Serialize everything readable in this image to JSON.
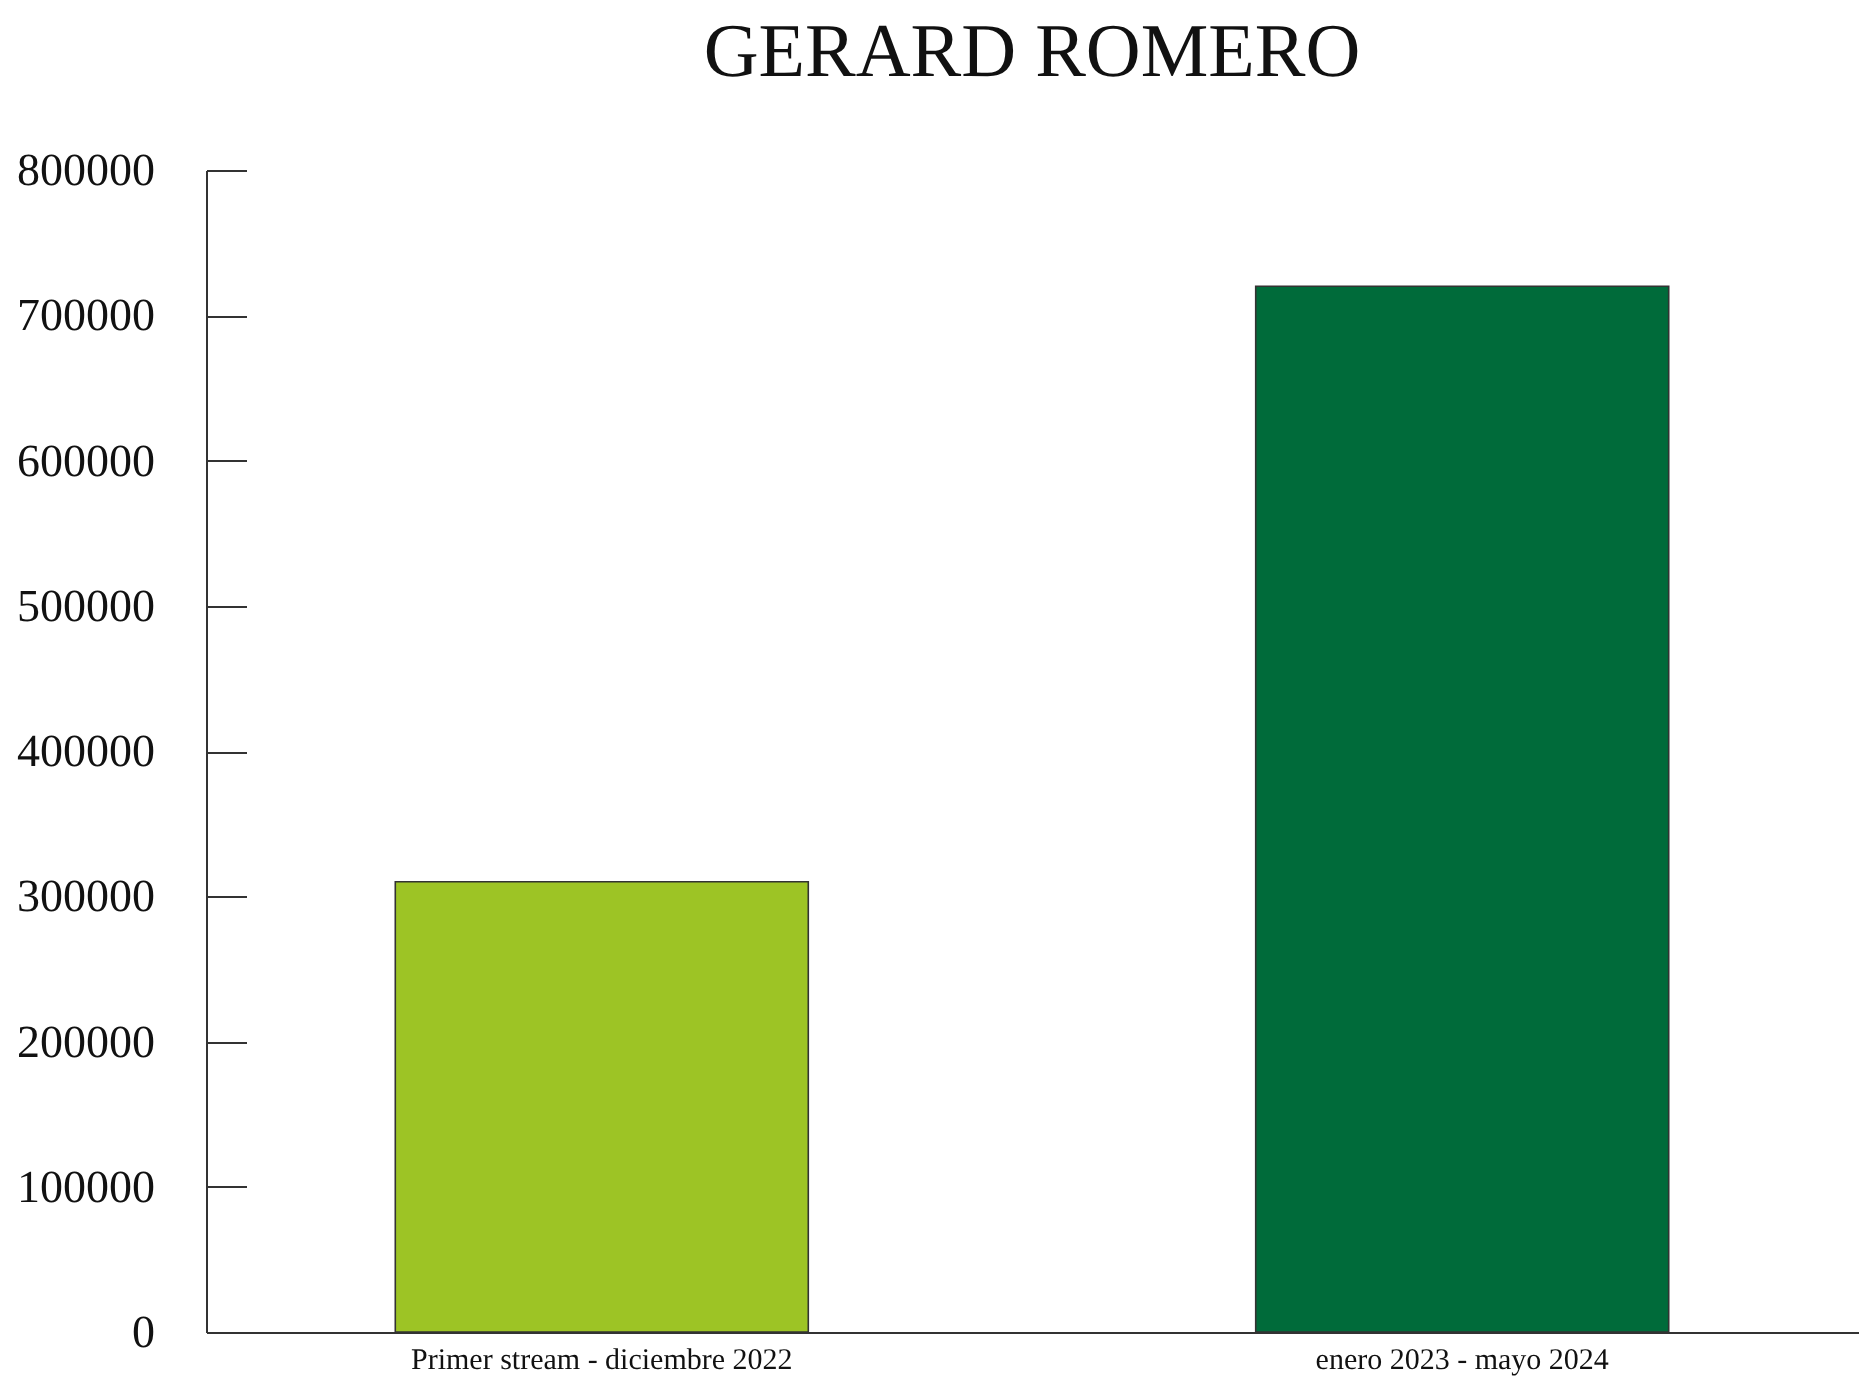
{
  "chart_data": {
    "type": "bar",
    "title": "GERARD ROMERO",
    "categories": [
      "Primer stream - diciembre 2022",
      "enero 2023 - mayo 2024"
    ],
    "values": [
      310000,
      720000
    ],
    "colors": [
      "#9dc425",
      "#006b3a"
    ],
    "ylim": [
      0,
      800000
    ],
    "yticks": [
      0,
      100000,
      200000,
      300000,
      400000,
      500000,
      600000,
      700000,
      800000
    ],
    "grid": false
  }
}
